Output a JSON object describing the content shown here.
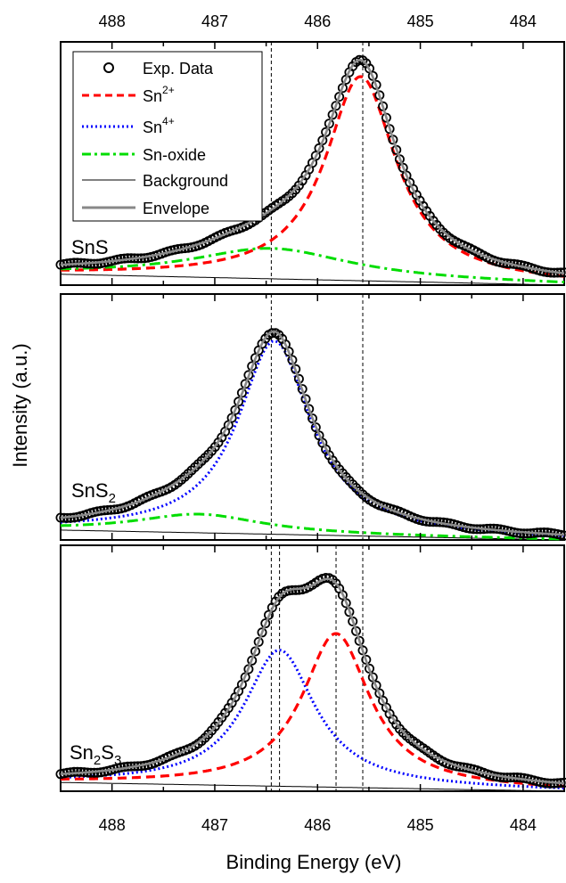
{
  "chart_data": {
    "type": "line",
    "xlabel": "Binding Energy (eV)",
    "ylabel": "Intensity (a.u.)",
    "xlim": [
      488.5,
      483.6
    ],
    "x_reversed": true,
    "xticks": [
      "488",
      "487",
      "486",
      "485",
      "484"
    ],
    "grid": false,
    "legend": {
      "placement": "top-left",
      "panel": "SnS",
      "entries": [
        {
          "label": "Exp. Data",
          "style": "circles",
          "color": "#000000"
        },
        {
          "label": "Sn",
          "sup": "2+",
          "style": "dashed",
          "color": "#ff0000"
        },
        {
          "label": "Sn",
          "sup": "4+",
          "style": "dotted",
          "color": "#0000ff"
        },
        {
          "label": "Sn-oxide",
          "style": "dash-dot",
          "color": "#00dd00"
        },
        {
          "label": "Background",
          "style": "solid-thin",
          "color": "#000000"
        },
        {
          "label": "Envelope",
          "style": "solid-thick",
          "color": "#888888"
        }
      ]
    },
    "panels": [
      {
        "label": "SnS",
        "label_sub": "",
        "label_tail": "",
        "ylim": [
          0,
          1.12
        ],
        "ref_lines": [
          486.45,
          485.56
        ],
        "background": {
          "x": [
            488.5,
            483.6
          ],
          "y": [
            0.05,
            0.0
          ]
        },
        "components": [
          {
            "name": "Sn2+",
            "center": 485.58,
            "amp": 0.94,
            "width": 0.42
          },
          {
            "name": "Sn-oxide",
            "center": 486.45,
            "amp": 0.14,
            "width": 0.95
          }
        ]
      },
      {
        "label": "SnS",
        "label_sub": "2",
        "label_tail": "",
        "ylim": [
          0,
          1.12
        ],
        "ref_lines": [
          486.45,
          485.56
        ],
        "background": {
          "x": [
            488.5,
            483.6
          ],
          "y": [
            0.045,
            0.0
          ]
        },
        "components": [
          {
            "name": "Sn4+",
            "center": 486.42,
            "amp": 0.88,
            "width": 0.43
          },
          {
            "name": "Sn-oxide",
            "center": 487.15,
            "amp": 0.085,
            "width": 0.75
          }
        ]
      },
      {
        "label": "Sn",
        "label_sub": "2",
        "label_tail": "S",
        "label_sub2": "3",
        "ylim": [
          0,
          1.12
        ],
        "ref_lines": [
          486.45,
          486.37,
          485.82,
          485.56
        ],
        "background": {
          "x": [
            488.5,
            483.6
          ],
          "y": [
            0.04,
            0.0
          ]
        },
        "components": [
          {
            "name": "Sn4+",
            "center": 486.37,
            "amp": 0.62,
            "width": 0.42
          },
          {
            "name": "Sn2+",
            "center": 485.82,
            "amp": 0.7,
            "width": 0.4
          }
        ]
      }
    ]
  }
}
